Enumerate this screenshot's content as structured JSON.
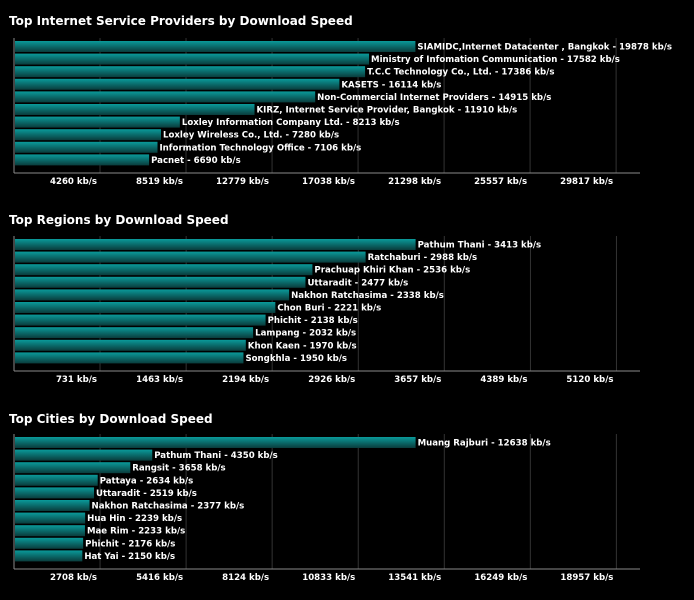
{
  "chart_data": [
    {
      "type": "bar",
      "orientation": "horizontal",
      "title": "Top Internet Service Providers by Download Speed",
      "unit": "kb/s",
      "xlim": [
        0,
        31000
      ],
      "ticks": [
        4260,
        8519,
        12779,
        17038,
        21298,
        25557,
        29817
      ],
      "tick_labels": [
        "4260 kb/s",
        "8519 kb/s",
        "12779 kb/s",
        "17038 kb/s",
        "21298 kb/s",
        "25557 kb/s",
        "29817 kb/s"
      ],
      "grid": true,
      "categories": [
        "SIAMIDC,Internet Datacenter , Bangkok",
        "Ministry of Infomation Communication",
        "T.C.C Technology Co., Ltd.",
        "KASETS",
        "Non-Commercial Internet Providers",
        "KIRZ, Internet Service Provider, Bangkok",
        "Loxley Information Company Ltd.",
        "Loxley Wireless Co., Ltd.",
        "Information Technology Office",
        "Pacnet"
      ],
      "values": [
        19878,
        17582,
        17386,
        16114,
        14915,
        11910,
        8213,
        7280,
        7106,
        6690
      ],
      "labels": [
        "SIAMIDC,Internet Datacenter , Bangkok - 19878 kb/s",
        "Ministry of Infomation Communication - 17582 kb/s",
        "T.C.C Technology Co., Ltd. - 17386 kb/s",
        "KASETS - 16114 kb/s",
        "Non-Commercial Internet Providers - 14915 kb/s",
        "KIRZ, Internet Service Provider, Bangkok - 11910 kb/s",
        "Loxley Information Company Ltd. - 8213 kb/s",
        "Loxley Wireless Co., Ltd. - 7280 kb/s",
        "Information Technology Office - 7106 kb/s",
        "Pacnet - 6690 kb/s"
      ]
    },
    {
      "type": "bar",
      "orientation": "horizontal",
      "title": "Top Regions by Download Speed",
      "unit": "kb/s",
      "xlim": [
        0,
        5320
      ],
      "ticks": [
        731,
        1463,
        2194,
        2926,
        3657,
        4389,
        5120
      ],
      "tick_labels": [
        "731 kb/s",
        "1463 kb/s",
        "2194 kb/s",
        "2926 kb/s",
        "3657 kb/s",
        "4389 kb/s",
        "5120 kb/s"
      ],
      "grid": true,
      "categories": [
        "Pathum Thani",
        "Ratchaburi",
        "Prachuap Khiri Khan",
        "Uttaradit",
        "Nakhon Ratchasima",
        "Chon Buri",
        "Phichit",
        "Lampang",
        "Khon Kaen",
        "Songkhla"
      ],
      "values": [
        3413,
        2988,
        2536,
        2477,
        2338,
        2221,
        2138,
        2032,
        1970,
        1950
      ],
      "labels": [
        "Pathum Thani - 3413 kb/s",
        "Ratchaburi - 2988 kb/s",
        "Prachuap Khiri Khan - 2536 kb/s",
        "Uttaradit - 2477 kb/s",
        "Nakhon Ratchasima - 2338 kb/s",
        "Chon Buri - 2221 kb/s",
        "Phichit - 2138 kb/s",
        "Lampang - 2032 kb/s",
        "Khon Kaen - 1970 kb/s",
        "Songkhla - 1950 kb/s"
      ]
    },
    {
      "type": "bar",
      "orientation": "horizontal",
      "title": "Top Cities by Download Speed",
      "unit": "kb/s",
      "xlim": [
        0,
        19700
      ],
      "ticks": [
        2708,
        5416,
        8124,
        10833,
        13541,
        16249,
        18957
      ],
      "tick_labels": [
        "2708 kb/s",
        "5416 kb/s",
        "8124 kb/s",
        "10833 kb/s",
        "13541 kb/s",
        "16249 kb/s",
        "18957 kb/s"
      ],
      "grid": true,
      "categories": [
        "Muang Rajburi",
        "Pathum Thani",
        "Rangsit",
        "Pattaya",
        "Uttaradit",
        "Nakhon Ratchasima",
        "Hua Hin",
        "Mae Rim",
        "Phichit",
        "Hat Yai"
      ],
      "values": [
        12638,
        4350,
        3658,
        2634,
        2519,
        2377,
        2239,
        2233,
        2176,
        2150
      ],
      "labels": [
        "Muang Rajburi - 12638 kb/s",
        "Pathum Thani - 4350 kb/s",
        "Rangsit - 3658 kb/s",
        "Pattaya - 2634 kb/s",
        "Uttaradit - 2519 kb/s",
        "Nakhon Ratchasima - 2377 kb/s",
        "Hua Hin - 2239 kb/s",
        "Mae Rim - 2233 kb/s",
        "Phichit - 2176 kb/s",
        "Hat Yai - 2150 kb/s"
      ]
    }
  ],
  "colors": {
    "background": "#000000",
    "grid": "#333333",
    "axis": "#8a8a8a",
    "bar_top": "#0a9a9a",
    "bar_bottom": "#0a3c3c",
    "text": "#ffffff"
  }
}
